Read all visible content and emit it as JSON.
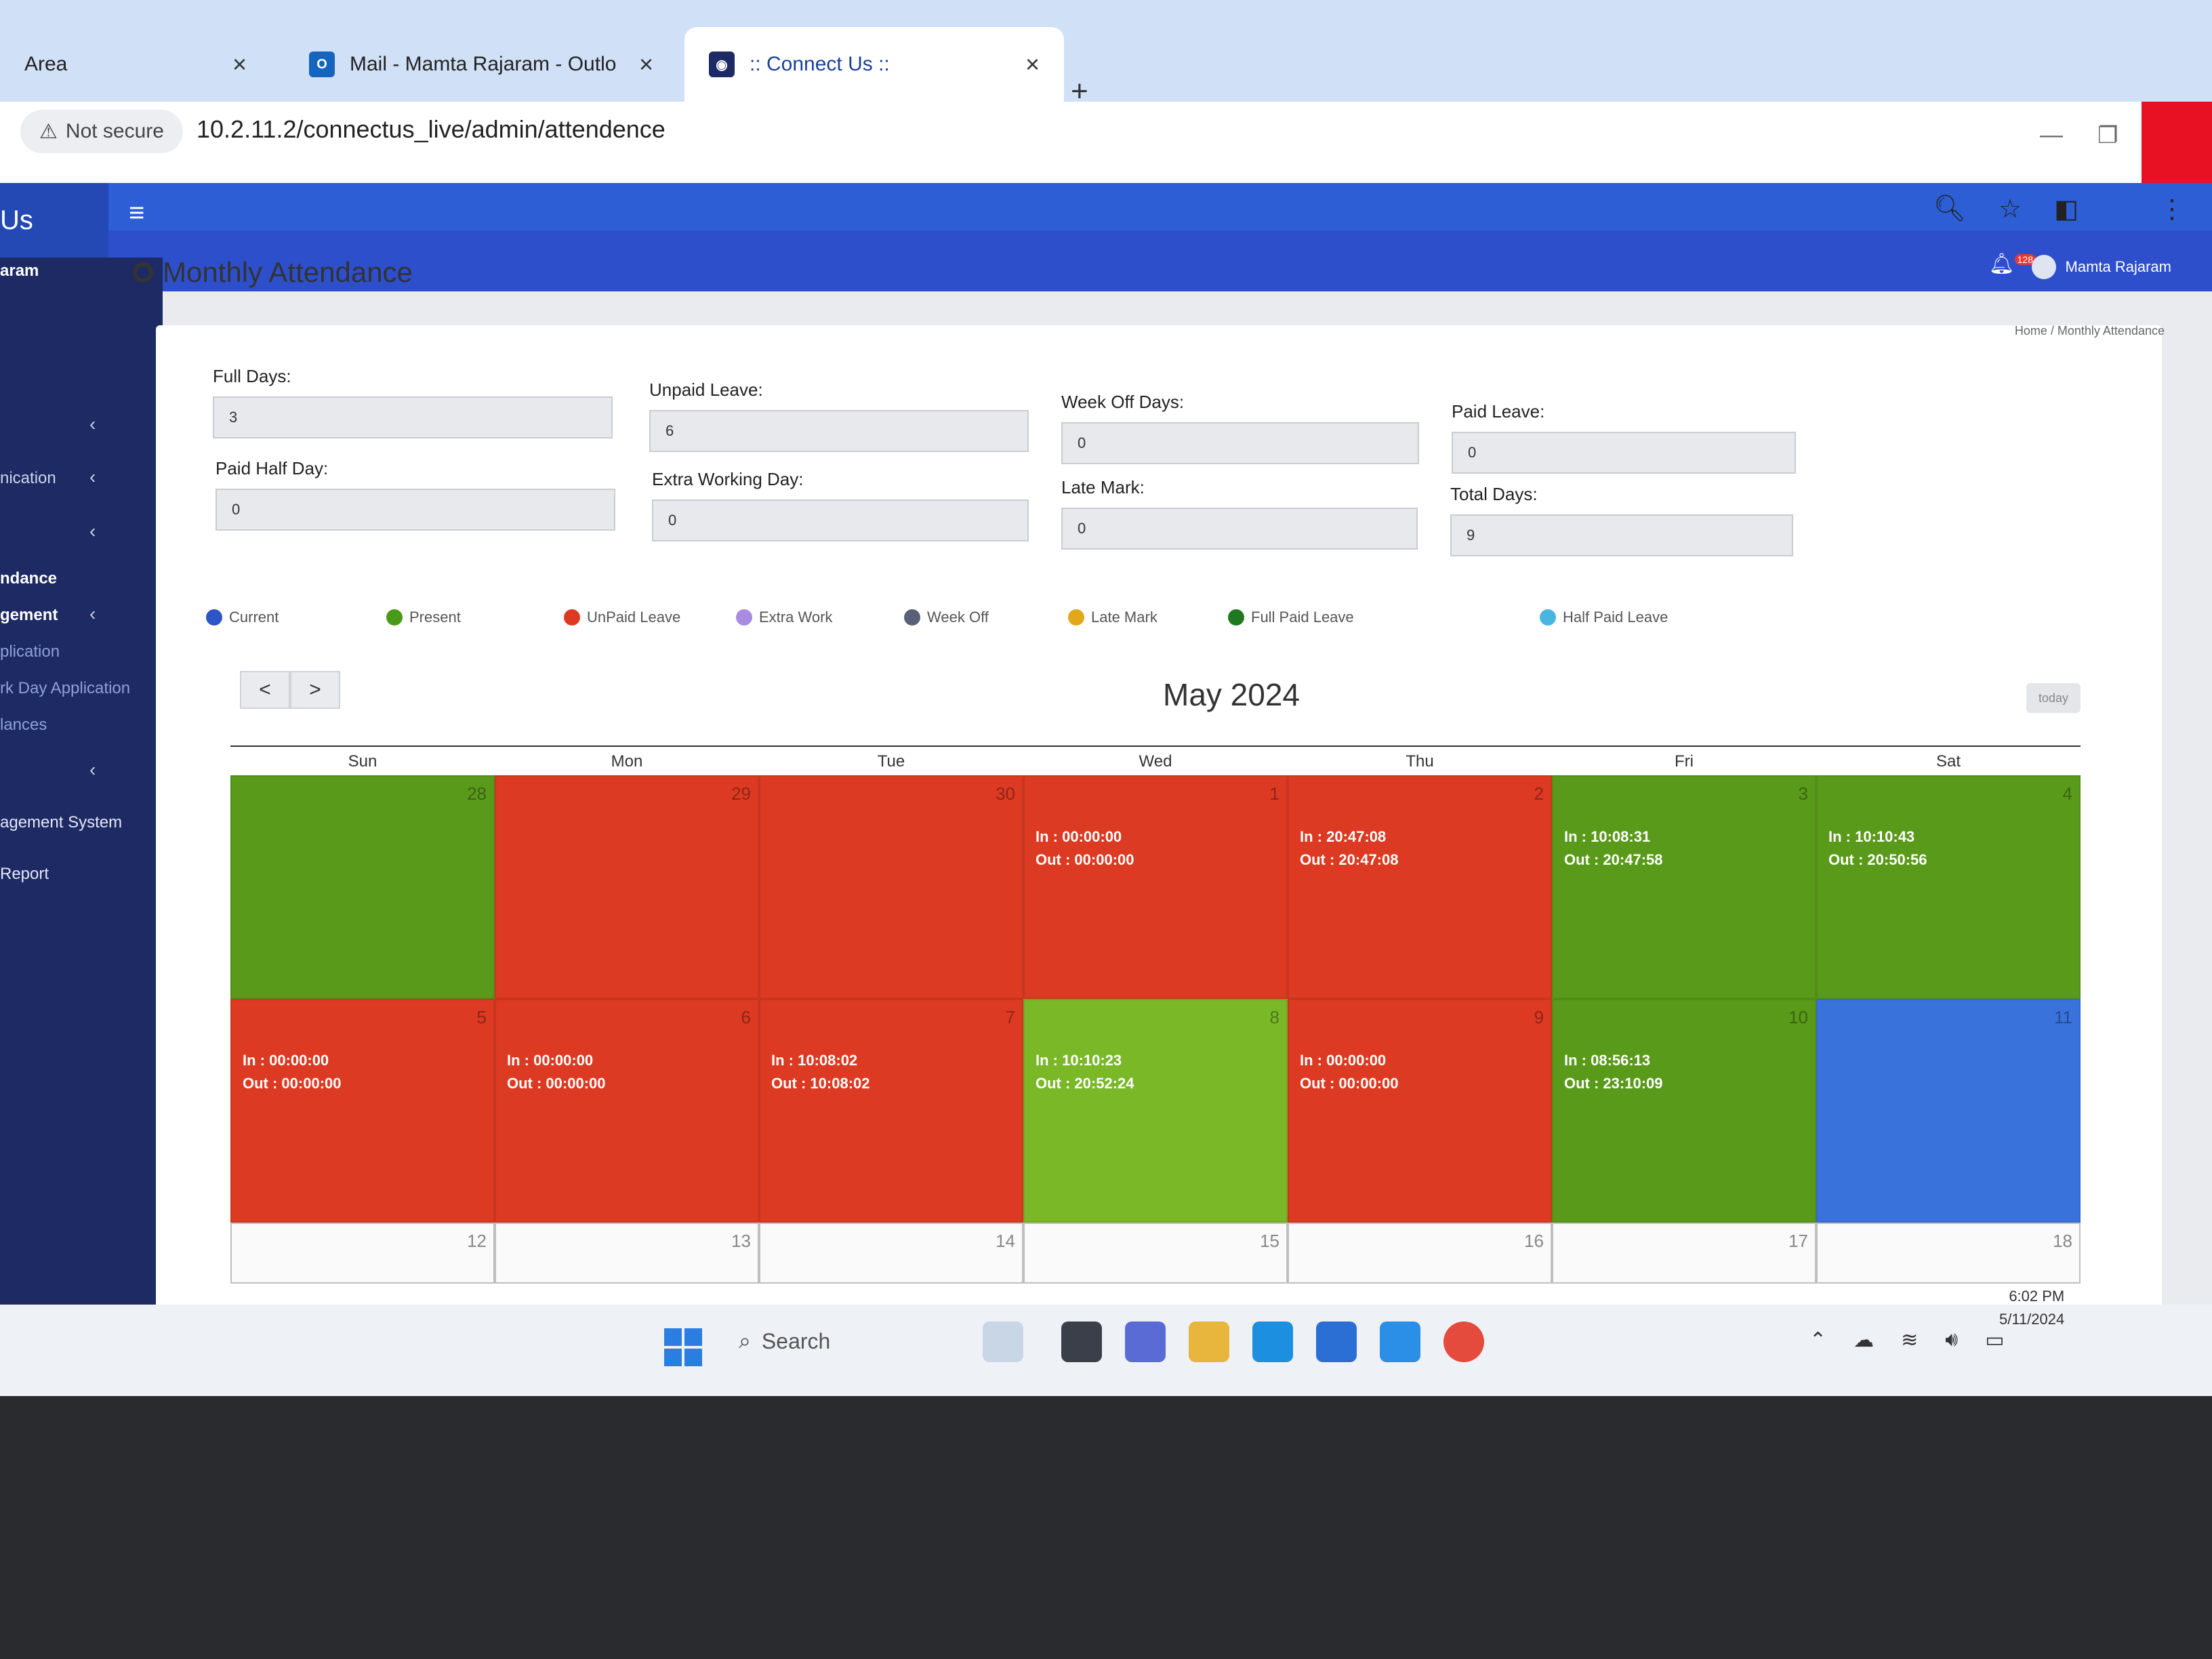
{
  "browser": {
    "tabs": [
      {
        "label": "Area"
      },
      {
        "label": "Mail - Mamta Rajaram - Outlo"
      },
      {
        "label": ":: Connect Us ::"
      }
    ],
    "close_glyph": "×",
    "new_tab_glyph": "+",
    "security": "Not secure",
    "url": "10.2.11.2/connectus_live/admin/attendence"
  },
  "app": {
    "brand": "Us",
    "user_name": "Mamta Rajaram",
    "notification_count": "128",
    "sidebar": {
      "user": "aram",
      "items": [
        "nication",
        "ndance",
        "gement",
        "plication",
        "rk Day Application",
        "lances",
        "agement System",
        "Report"
      ]
    },
    "page_title": "Monthly Attendance",
    "breadcrumb": "Home / Monthly Attendance"
  },
  "summary": {
    "full_days": {
      "label": "Full Days:",
      "value": "3"
    },
    "paid_half_day": {
      "label": "Paid Half Day:",
      "value": "0"
    },
    "unpaid_leave": {
      "label": "Unpaid Leave:",
      "value": "6"
    },
    "extra_working_day": {
      "label": "Extra Working Day:",
      "value": "0"
    },
    "week_off_days": {
      "label": "Week Off Days:",
      "value": "0"
    },
    "late_mark": {
      "label": "Late Mark:",
      "value": "0"
    },
    "paid_leave": {
      "label": "Paid Leave:",
      "value": "0"
    },
    "total_days": {
      "label": "Total Days:",
      "value": "9"
    }
  },
  "legend": [
    {
      "label": "Current",
      "color": "#2e55c8"
    },
    {
      "label": "Present",
      "color": "#4a9a1a"
    },
    {
      "label": "UnPaid Leave",
      "color": "#dc3a22"
    },
    {
      "label": "Extra Work",
      "color": "#a98be0"
    },
    {
      "label": "Week Off",
      "color": "#5a5f7a"
    },
    {
      "label": "Late Mark",
      "color": "#e0a81a"
    },
    {
      "label": "Full Paid Leave",
      "color": "#1f7a1f"
    },
    {
      "label": "Half Paid Leave",
      "color": "#48b6e0"
    }
  ],
  "calendar": {
    "title": "May 2024",
    "prev": "<",
    "next": ">",
    "today": "today",
    "days": [
      "Sun",
      "Mon",
      "Tue",
      "Wed",
      "Thu",
      "Fri",
      "Sat"
    ],
    "weeks": [
      [
        {
          "day": "28",
          "in": "",
          "out": "",
          "status": "present"
        },
        {
          "day": "29",
          "in": "",
          "out": "",
          "status": "unpaid"
        },
        {
          "day": "30",
          "in": "",
          "out": "",
          "status": "unpaid"
        },
        {
          "day": "1",
          "in": "In : 00:00:00",
          "out": "Out : 00:00:00",
          "status": "unpaid"
        },
        {
          "day": "2",
          "in": "In : 20:47:08",
          "out": "Out : 20:47:08",
          "status": "unpaid"
        },
        {
          "day": "3",
          "in": "In : 10:08:31",
          "out": "Out : 20:47:58",
          "status": "present"
        },
        {
          "day": "4",
          "in": "In : 10:10:43",
          "out": "Out : 20:50:56",
          "status": "present"
        }
      ],
      [
        {
          "day": "5",
          "in": "In : 00:00:00",
          "out": "Out : 00:00:00",
          "status": "unpaid"
        },
        {
          "day": "6",
          "in": "In : 00:00:00",
          "out": "Out : 00:00:00",
          "status": "unpaid"
        },
        {
          "day": "7",
          "in": "In : 10:08:02",
          "out": "Out : 10:08:02",
          "status": "unpaid"
        },
        {
          "day": "8",
          "in": "In : 10:10:23",
          "out": "Out : 20:52:24",
          "status": "present-light"
        },
        {
          "day": "9",
          "in": "In : 00:00:00",
          "out": "Out : 00:00:00",
          "status": "unpaid"
        },
        {
          "day": "10",
          "in": "In : 08:56:13",
          "out": "Out : 23:10:09",
          "status": "present"
        },
        {
          "day": "11",
          "in": "",
          "out": "",
          "status": "current"
        }
      ],
      [
        {
          "day": "12",
          "in": "",
          "out": "",
          "status": "none"
        },
        {
          "day": "13",
          "in": "",
          "out": "",
          "status": "none"
        },
        {
          "day": "14",
          "in": "",
          "out": "",
          "status": "none"
        },
        {
          "day": "15",
          "in": "",
          "out": "",
          "status": "none"
        },
        {
          "day": "16",
          "in": "",
          "out": "",
          "status": "none"
        },
        {
          "day": "17",
          "in": "",
          "out": "",
          "status": "none"
        },
        {
          "day": "18",
          "in": "",
          "out": "",
          "status": "none"
        }
      ]
    ]
  },
  "taskbar": {
    "search": "Search",
    "time": "6:02 PM",
    "date": "5/11/2024"
  }
}
